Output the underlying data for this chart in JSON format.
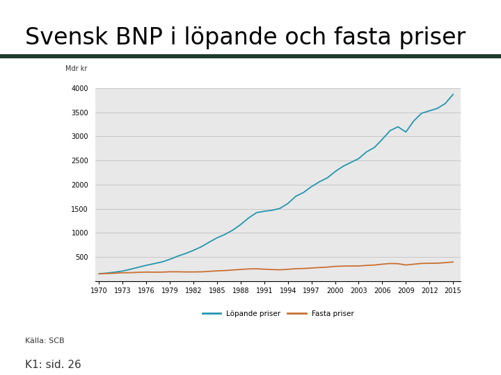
{
  "title": "Svensk BNP i löpande och fasta priser",
  "source": "Källa: SCB",
  "ref": "K1: sid. 26",
  "ylabel": "Mdr kr",
  "chart_bg": "#e8e8e8",
  "outer_bg": "#ffffff",
  "title_color": "#000000",
  "dark_bar_color": "#1c3d2a",
  "lopande_color": "#2196b0",
  "fasta_color": "#c87030",
  "legend_lopande": "Löpande priser",
  "legend_fasta": "Fasta priser",
  "years": [
    1970,
    1971,
    1972,
    1973,
    1974,
    1975,
    1976,
    1977,
    1978,
    1979,
    1980,
    1981,
    1982,
    1983,
    1984,
    1985,
    1986,
    1987,
    1988,
    1989,
    1990,
    1991,
    1992,
    1993,
    1994,
    1995,
    1996,
    1997,
    1998,
    1999,
    2000,
    2001,
    2002,
    2003,
    2004,
    2005,
    2006,
    2007,
    2008,
    2009,
    2010,
    2011,
    2012,
    2013,
    2014,
    2015
  ],
  "lopande": [
    155,
    170,
    188,
    212,
    248,
    290,
    330,
    365,
    400,
    455,
    520,
    575,
    640,
    715,
    810,
    900,
    970,
    1060,
    1175,
    1310,
    1420,
    1450,
    1470,
    1510,
    1610,
    1760,
    1840,
    1960,
    2060,
    2140,
    2270,
    2380,
    2460,
    2540,
    2680,
    2770,
    2940,
    3120,
    3200,
    3090,
    3320,
    3480,
    3530,
    3580,
    3680,
    3870
  ],
  "fasta": [
    155,
    160,
    167,
    175,
    178,
    185,
    190,
    188,
    189,
    196,
    196,
    193,
    193,
    195,
    205,
    215,
    222,
    233,
    245,
    255,
    258,
    250,
    242,
    237,
    248,
    260,
    264,
    274,
    284,
    293,
    308,
    314,
    316,
    316,
    328,
    336,
    353,
    368,
    364,
    337,
    353,
    369,
    372,
    374,
    385,
    400
  ],
  "ylim": [
    0,
    4000
  ],
  "yticks": [
    0,
    500,
    1000,
    1500,
    2000,
    2500,
    3000,
    3500,
    4000
  ],
  "xtick_years": [
    1970,
    1973,
    1976,
    1979,
    1982,
    1985,
    1988,
    1991,
    1994,
    1997,
    2000,
    2003,
    2006,
    2009,
    2012,
    2015
  ],
  "title_fontsize": 24,
  "tick_fontsize": 7,
  "legend_fontsize": 7.5,
  "source_fontsize": 8,
  "ref_fontsize": 11
}
